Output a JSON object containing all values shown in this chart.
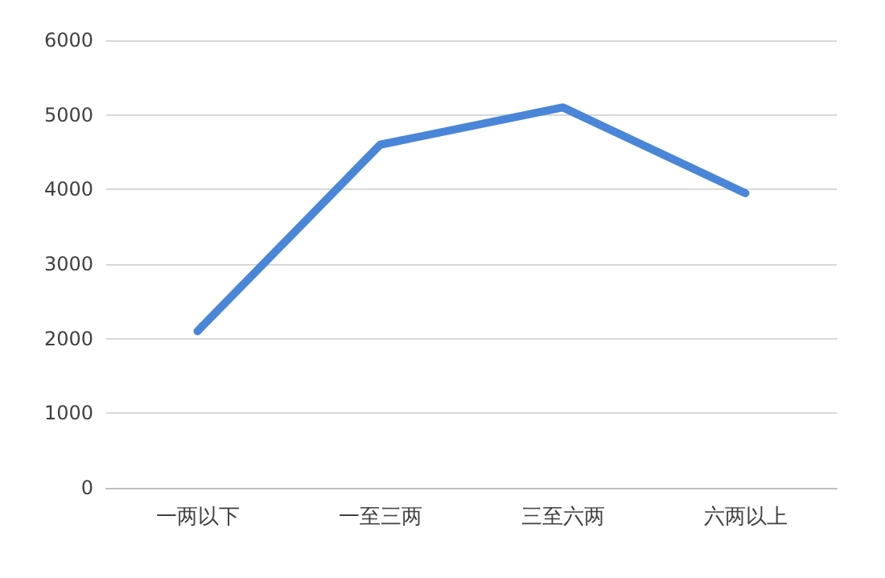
{
  "chart_data": {
    "type": "line",
    "categories": [
      "一两以下",
      "一至三两",
      "三至六两",
      "六两以上"
    ],
    "series": [
      {
        "color": "#4a86d8",
        "values": [
          2100,
          4600,
          5100,
          3950
        ]
      }
    ],
    "ylim": [
      0,
      6000
    ],
    "yticks": [
      0,
      1000,
      2000,
      3000,
      4000,
      5000,
      6000
    ],
    "grid": "y",
    "marker": "none",
    "line_style": "solid"
  }
}
